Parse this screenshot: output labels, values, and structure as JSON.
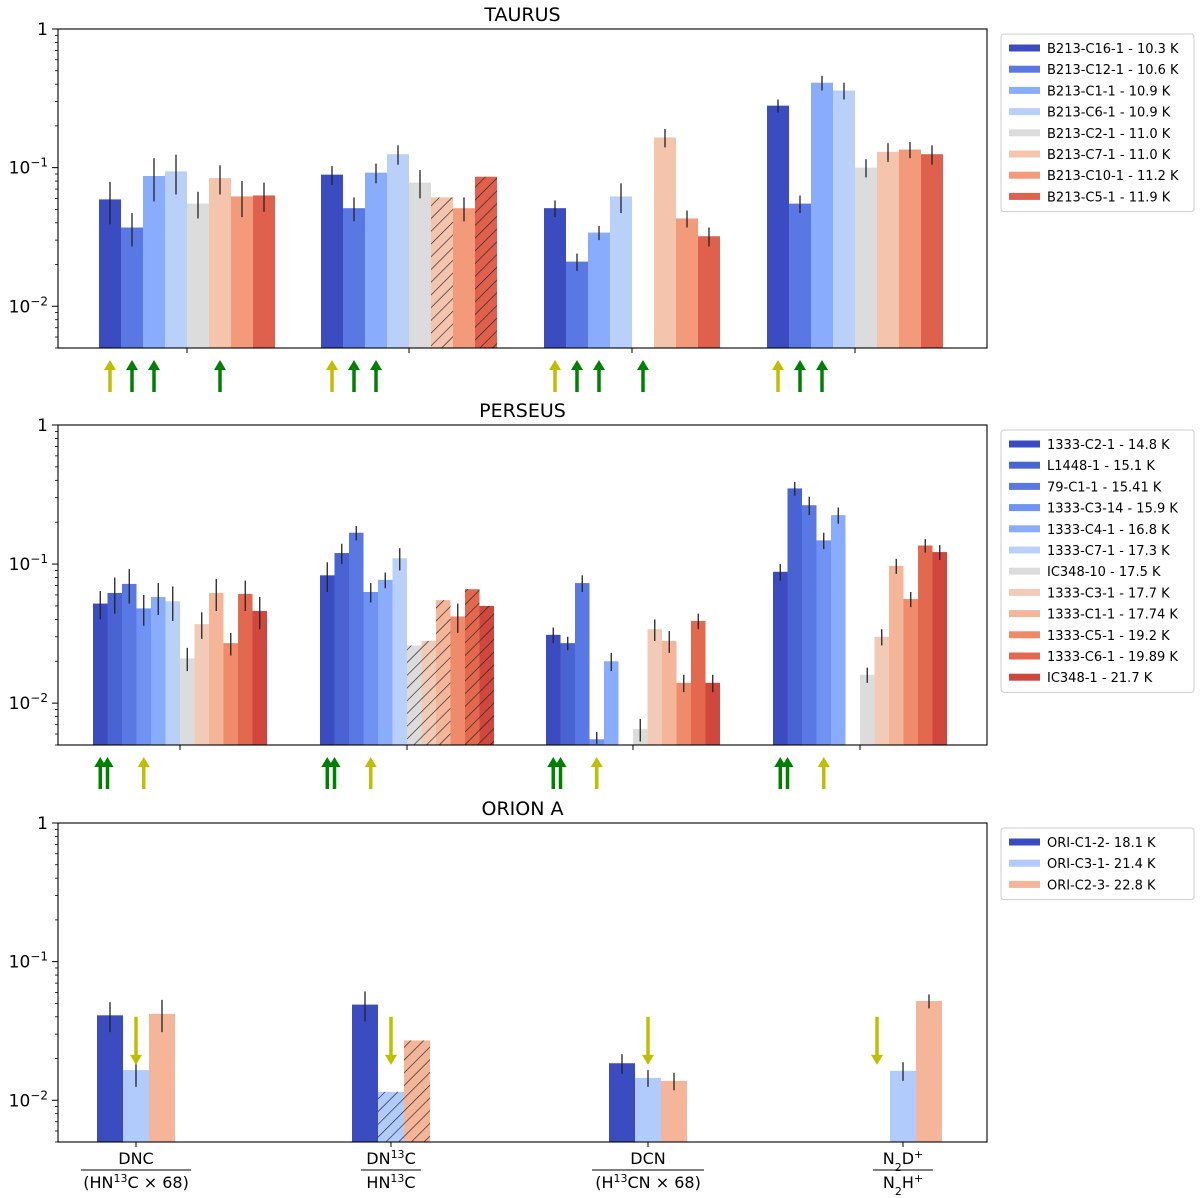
{
  "chart_data": [
    {
      "type": "bar",
      "title": "TAURUS",
      "yscale": "log",
      "ylim": [
        0.005,
        1
      ],
      "yticks": [
        "1",
        "10⁻¹",
        "10⁻²"
      ],
      "categories": [
        "DNC/(HN13C×68)",
        "DN13C/HN13C",
        "DCN/(H13CN×68)",
        "N2D+/N2H+"
      ],
      "legend_position": "right",
      "series": [
        {
          "name": "B213-C16-1 - 10.3 K",
          "color": "#3b4cc0",
          "values": [
            0.059,
            0.089,
            0.051,
            0.28
          ],
          "errors": [
            0.02,
            0.014,
            0.007,
            0.03
          ]
        },
        {
          "name": "B213-C12-1 - 10.6 K",
          "color": "#5a78e4",
          "values": [
            0.037,
            0.051,
            0.021,
            0.055
          ],
          "errors": [
            0.01,
            0.01,
            0.003,
            0.008
          ]
        },
        {
          "name": "B213-C1-1 - 10.9 K",
          "color": "#8aacfd",
          "values": [
            0.087,
            0.092,
            0.034,
            0.41
          ],
          "errors": [
            0.03,
            0.015,
            0.004,
            0.05
          ]
        },
        {
          "name": "B213-C6-1 - 10.9 K",
          "color": "#b9d0f9",
          "values": [
            0.094,
            0.125,
            0.062,
            0.36
          ],
          "errors": [
            0.03,
            0.02,
            0.015,
            0.05
          ]
        },
        {
          "name": "B213-C2-1 - 11.0 K",
          "color": "#dddcdc",
          "values": [
            0.055,
            0.078,
            null,
            0.1
          ],
          "errors": [
            0.012,
            0.018,
            null,
            0.015
          ],
          "hatched": [
            false,
            false,
            false,
            false
          ]
        },
        {
          "name": "B213-C7-1 - 11.0 K",
          "color": "#f5c4ac",
          "values": [
            0.084,
            0.061,
            0.165,
            0.13
          ],
          "errors": [
            0.02,
            0.0,
            0.025,
            0.02
          ],
          "hatched": [
            false,
            true,
            false,
            false
          ]
        },
        {
          "name": "B213-C10-1 - 11.2 K",
          "color": "#f39a7b",
          "values": [
            0.062,
            0.051,
            0.043,
            0.135
          ],
          "errors": [
            0.018,
            0.01,
            0.006,
            0.018
          ]
        },
        {
          "name": "B213-C5-1 - 11.9 K",
          "color": "#de604d",
          "values": [
            0.063,
            0.086,
            0.032,
            0.125
          ],
          "errors": [
            0.015,
            0.0,
            0.005,
            0.02
          ],
          "hatched": [
            false,
            true,
            false,
            false
          ]
        }
      ]
    },
    {
      "type": "bar",
      "title": "PERSEUS",
      "yscale": "log",
      "ylim": [
        0.005,
        1
      ],
      "yticks": [
        "1",
        "10⁻¹",
        "10⁻²"
      ],
      "categories": [
        "DNC/(HN13C×68)",
        "DN13C/HN13C",
        "DCN/(H13CN×68)",
        "N2D+/N2H+"
      ],
      "legend_position": "right",
      "series": [
        {
          "name": "1333-C2-1 - 14.8 K",
          "color": "#3b4cc0",
          "values": [
            0.052,
            0.083,
            0.031,
            0.088
          ],
          "errors": [
            0.012,
            0.02,
            0.004,
            0.012
          ]
        },
        {
          "name": "L1448-1 - 15.1 K",
          "color": "#4a63d3",
          "values": [
            0.062,
            0.12,
            0.027,
            0.35
          ],
          "errors": [
            0.018,
            0.02,
            0.003,
            0.04
          ]
        },
        {
          "name": "79-C1-1 - 15.41 K",
          "color": "#5a78e4",
          "values": [
            0.072,
            0.168,
            0.073,
            0.265
          ],
          "errors": [
            0.02,
            0.02,
            0.01,
            0.04
          ]
        },
        {
          "name": "1333-C3-14 - 15.9 K",
          "color": "#7093f3",
          "values": [
            0.048,
            0.063,
            0.0055,
            0.148
          ],
          "errors": [
            0.012,
            0.01,
            0.0007,
            0.02
          ]
        },
        {
          "name": "1333-C4-1 - 16.8 K",
          "color": "#8aacfd",
          "values": [
            0.058,
            0.077,
            0.02,
            0.225
          ],
          "errors": [
            0.015,
            0.01,
            0.003,
            0.03
          ]
        },
        {
          "name": "1333-C7-1 - 17.3 K",
          "color": "#b9d0f9",
          "values": [
            0.054,
            0.11,
            null,
            null
          ],
          "errors": [
            0.015,
            0.02,
            null,
            null
          ]
        },
        {
          "name": "IC348-10 - 17.5 K",
          "color": "#dddcdc",
          "values": [
            0.021,
            0.026,
            0.0065,
            0.016
          ],
          "errors": [
            0.004,
            0.0,
            0.0012,
            0.002
          ],
          "hatched": [
            false,
            true,
            false,
            false
          ]
        },
        {
          "name": "1333-C3-1 - 17.7 K",
          "color": "#f2cbb7",
          "values": [
            0.037,
            0.028,
            0.034,
            0.03
          ],
          "errors": [
            0.008,
            0.0,
            0.006,
            0.004
          ],
          "hatched": [
            false,
            true,
            false,
            false
          ]
        },
        {
          "name": "1333-C1-1 - 17.74 K",
          "color": "#f5b599",
          "values": [
            0.062,
            0.055,
            0.028,
            0.097
          ],
          "errors": [
            0.016,
            0.0,
            0.005,
            0.012
          ],
          "hatched": [
            false,
            true,
            false,
            false
          ]
        },
        {
          "name": "1333-C5-1 - 19.2 K",
          "color": "#ef8a6b",
          "values": [
            0.027,
            0.042,
            0.014,
            0.056
          ],
          "errors": [
            0.005,
            0.01,
            0.002,
            0.007
          ]
        },
        {
          "name": "1333-C6-1 - 19.89 K",
          "color": "#e2694e",
          "values": [
            0.061,
            0.066,
            0.039,
            0.136
          ],
          "errors": [
            0.015,
            0.0,
            0.005,
            0.015
          ],
          "hatched": [
            false,
            true,
            false,
            false
          ]
        },
        {
          "name": "IC348-1 - 21.7 K",
          "color": "#d0473d",
          "values": [
            0.046,
            0.05,
            0.014,
            0.122
          ],
          "errors": [
            0.012,
            0.0,
            0.002,
            0.015
          ],
          "hatched": [
            false,
            true,
            false,
            false
          ]
        }
      ]
    },
    {
      "type": "bar",
      "title": "ORION A",
      "yscale": "log",
      "ylim": [
        0.005,
        1
      ],
      "yticks": [
        "1",
        "10⁻¹",
        "10⁻²"
      ],
      "categories": [
        "DNC/(HN13C×68)",
        "DN13C/HN13C",
        "DCN/(H13CN×68)",
        "N2D+/N2H+"
      ],
      "legend_position": "right",
      "series": [
        {
          "name": "ORI-C1-2- 18.1 K",
          "color": "#3b4cc0",
          "values": [
            0.041,
            0.049,
            0.0185,
            null
          ],
          "errors": [
            0.01,
            0.012,
            0.003,
            null
          ]
        },
        {
          "name": "ORI-C3-1- 21.4 K",
          "color": "#b0cbfc",
          "values": [
            0.0165,
            0.0115,
            0.0145,
            0.0163
          ],
          "errors": [
            0.004,
            0.0,
            0.002,
            0.0025
          ],
          "hatched": [
            false,
            true,
            false,
            false
          ]
        },
        {
          "name": "ORI-C2-3- 22.8 K",
          "color": "#f5b599",
          "values": [
            0.042,
            0.027,
            0.0138,
            0.052
          ],
          "errors": [
            0.011,
            0.0,
            0.002,
            0.006
          ],
          "hatched": [
            false,
            true,
            false,
            false
          ]
        }
      ]
    }
  ],
  "arrows": [
    [
      [
        {
          "after": 0.5,
          "color": "#bfbf00",
          "dir": "up"
        },
        {
          "after": 1.5,
          "color": "#008000",
          "dir": "up"
        },
        {
          "after": 2.5,
          "color": "#008000",
          "dir": "up"
        },
        {
          "after": 5.5,
          "color": "#008000",
          "dir": "up"
        }
      ],
      [
        {
          "after": 0.5,
          "color": "#bfbf00",
          "dir": "up"
        },
        {
          "after": 1.5,
          "color": "#008000",
          "dir": "up"
        },
        {
          "after": 2.5,
          "color": "#008000",
          "dir": "up"
        }
      ],
      [
        {
          "after": 0.5,
          "color": "#bfbf00",
          "dir": "up"
        },
        {
          "after": 1.5,
          "color": "#008000",
          "dir": "up"
        },
        {
          "after": 2.5,
          "color": "#008000",
          "dir": "up"
        },
        {
          "after": 4.5,
          "color": "#008000",
          "dir": "up"
        }
      ],
      [
        {
          "after": 0.5,
          "color": "#bfbf00",
          "dir": "up"
        },
        {
          "after": 1.5,
          "color": "#008000",
          "dir": "up"
        },
        {
          "after": 2.5,
          "color": "#008000",
          "dir": "up"
        }
      ]
    ],
    [
      [
        {
          "after": 0.5,
          "color": "#008000",
          "dir": "up"
        },
        {
          "after": 1.0,
          "color": "#008000",
          "dir": "up"
        },
        {
          "after": 3.5,
          "color": "#bfbf00",
          "dir": "up"
        }
      ],
      [
        {
          "after": 0.5,
          "color": "#008000",
          "dir": "up"
        },
        {
          "after": 1.0,
          "color": "#008000",
          "dir": "up"
        },
        {
          "after": 3.5,
          "color": "#bfbf00",
          "dir": "up"
        }
      ],
      [
        {
          "after": 0.5,
          "color": "#008000",
          "dir": "up"
        },
        {
          "after": 1.0,
          "color": "#008000",
          "dir": "up"
        },
        {
          "after": 3.5,
          "color": "#bfbf00",
          "dir": "up"
        }
      ],
      [
        {
          "after": 0.5,
          "color": "#008000",
          "dir": "up"
        },
        {
          "after": 1.0,
          "color": "#008000",
          "dir": "up"
        },
        {
          "after": 3.5,
          "color": "#bfbf00",
          "dir": "up"
        }
      ]
    ],
    [
      [
        {
          "after": 1.5,
          "color": "#bfbf00",
          "dir": "down"
        }
      ],
      [
        {
          "after": 1.5,
          "color": "#bfbf00",
          "dir": "down"
        }
      ],
      [
        {
          "after": 1.5,
          "color": "#bfbf00",
          "dir": "down"
        }
      ],
      [
        {
          "after": 0.5,
          "color": "#bfbf00",
          "dir": "down"
        }
      ]
    ]
  ]
}
